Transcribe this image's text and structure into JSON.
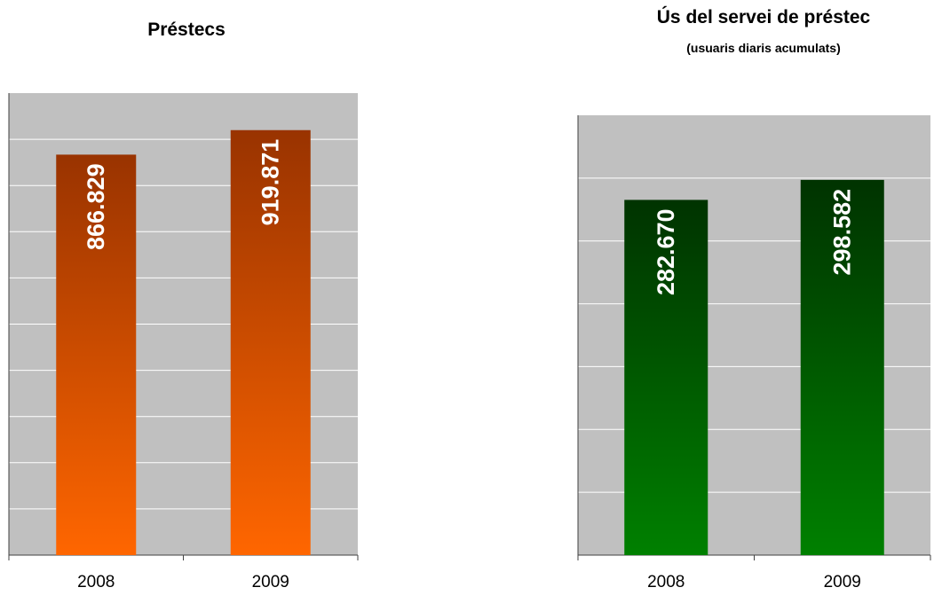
{
  "chart_data": [
    {
      "type": "bar",
      "title": "Préstecs",
      "categories": [
        "2008",
        "2009"
      ],
      "values": [
        866829,
        919871
      ],
      "value_labels": [
        "866.829",
        "919.871"
      ],
      "ylim": [
        0,
        1000000
      ],
      "grid": true,
      "colors": {
        "bar_top": "#993300",
        "bar_bottom": "#ff6600",
        "label": "#ffffff",
        "plot_bg": "#c0c0c0",
        "grid": "#ffffff"
      }
    },
    {
      "type": "bar",
      "title": "Ús del servei de préstec",
      "subtitle": "(usuaris diaris acumulats)",
      "categories": [
        "2008",
        "2009"
      ],
      "values": [
        282670,
        298582
      ],
      "value_labels": [
        "282.670",
        "298.582"
      ],
      "ylim": [
        0,
        350000
      ],
      "grid": true,
      "colors": {
        "bar_top": "#003300",
        "bar_bottom": "#008000",
        "label": "#ffffff",
        "plot_bg": "#c0c0c0",
        "grid": "#ffffff"
      }
    }
  ]
}
